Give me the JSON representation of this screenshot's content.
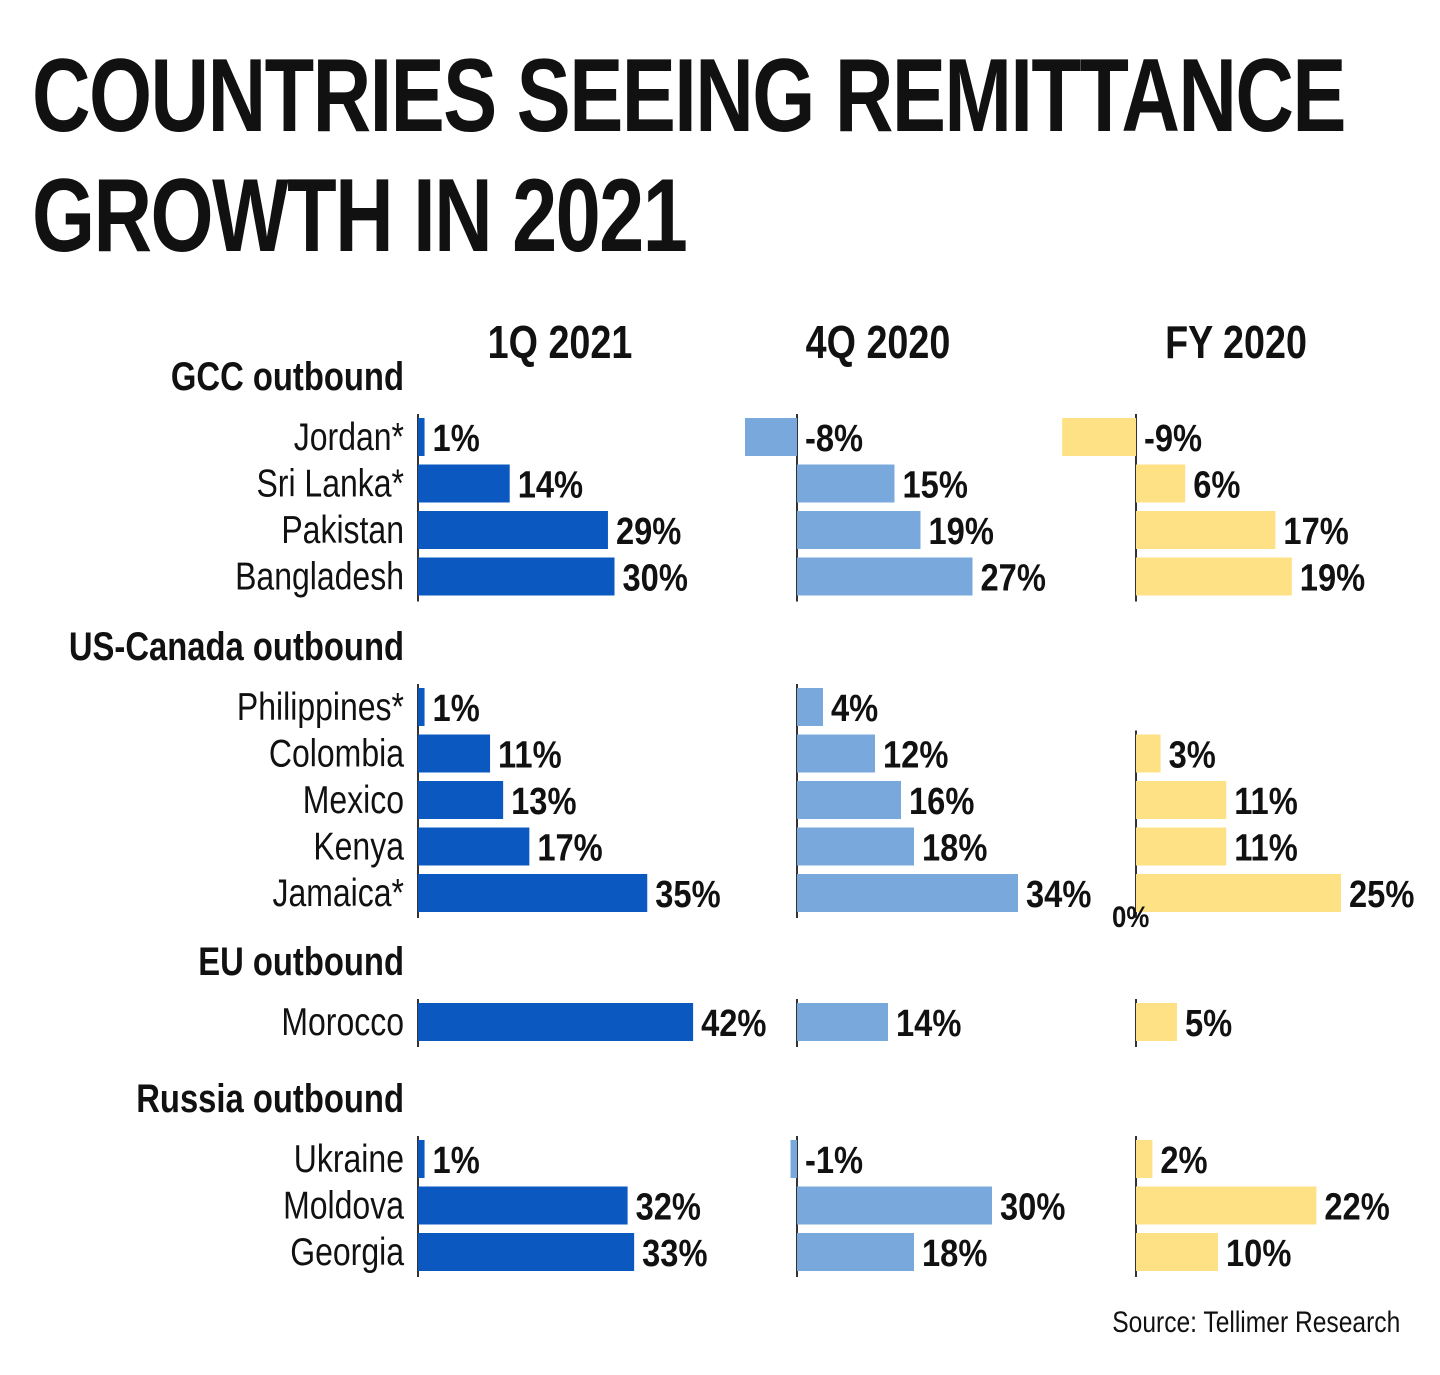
{
  "title_lines": [
    "COUNTRIES SEEING REMITTANCE",
    "GROWTH IN 2021"
  ],
  "source": "Source: Tellimer Research",
  "colors": {
    "q1_2021": "#0a58c0",
    "q4_2020": "#79a9dc",
    "fy_2020": "#fde184",
    "text": "#111111",
    "axis": "#333333"
  },
  "chart_data": {
    "type": "bar",
    "orientation": "horizontal",
    "columns": [
      "1Q 2021",
      "4Q 2020",
      "FY 2020"
    ],
    "groups": [
      {
        "name": "GCC outbound",
        "countries": [
          "Jordan*",
          "Sri Lanka*",
          "Pakistan",
          "Bangladesh"
        ],
        "values": {
          "1Q 2021": [
            1,
            14,
            29,
            30
          ],
          "4Q 2020": [
            -8,
            15,
            19,
            27
          ],
          "FY 2020": [
            -9,
            6,
            17,
            19
          ]
        },
        "labels": {
          "1Q 2021": [
            "1%",
            "14%",
            "29%",
            "30%"
          ],
          "4Q 2020": [
            "-8%",
            "15%",
            "19%",
            "27%"
          ],
          "FY 2020": [
            "-9%",
            "6%",
            "17%",
            "19%"
          ]
        }
      },
      {
        "name": "US-Canada outbound",
        "countries": [
          "Philippines*",
          "Colombia",
          "Mexico",
          "Kenya",
          "Jamaica*"
        ],
        "values": {
          "1Q 2021": [
            1,
            11,
            13,
            17,
            35
          ],
          "4Q 2020": [
            4,
            12,
            16,
            18,
            34
          ],
          "FY 2020": [
            null,
            3,
            11,
            11,
            25
          ]
        },
        "labels": {
          "1Q 2021": [
            "1%",
            "11%",
            "13%",
            "17%",
            "35%"
          ],
          "4Q 2020": [
            "4%",
            "12%",
            "16%",
            "18%",
            "34%"
          ],
          "FY 2020": [
            "",
            "3%",
            "11%",
            "11%",
            "25%"
          ]
        },
        "extra_label": "0%"
      },
      {
        "name": "EU outbound",
        "countries": [
          "Morocco"
        ],
        "values": {
          "1Q 2021": [
            42
          ],
          "4Q 2020": [
            14
          ],
          "FY 2020": [
            5
          ]
        },
        "labels": {
          "1Q 2021": [
            "42%"
          ],
          "4Q 2020": [
            "14%"
          ],
          "FY 2020": [
            "5%"
          ]
        }
      },
      {
        "name": "Russia outbound",
        "countries": [
          "Ukraine",
          "Moldova",
          "Georgia"
        ],
        "values": {
          "1Q 2021": [
            1,
            32,
            33
          ],
          "4Q 2020": [
            -1,
            30,
            18
          ],
          "FY 2020": [
            2,
            22,
            10
          ]
        },
        "labels": {
          "1Q 2021": [
            "1%",
            "32%",
            "33%"
          ],
          "4Q 2020": [
            "-1%",
            "30%",
            "18%"
          ],
          "FY 2020": [
            "2%",
            "22%",
            "10%"
          ]
        }
      }
    ]
  }
}
